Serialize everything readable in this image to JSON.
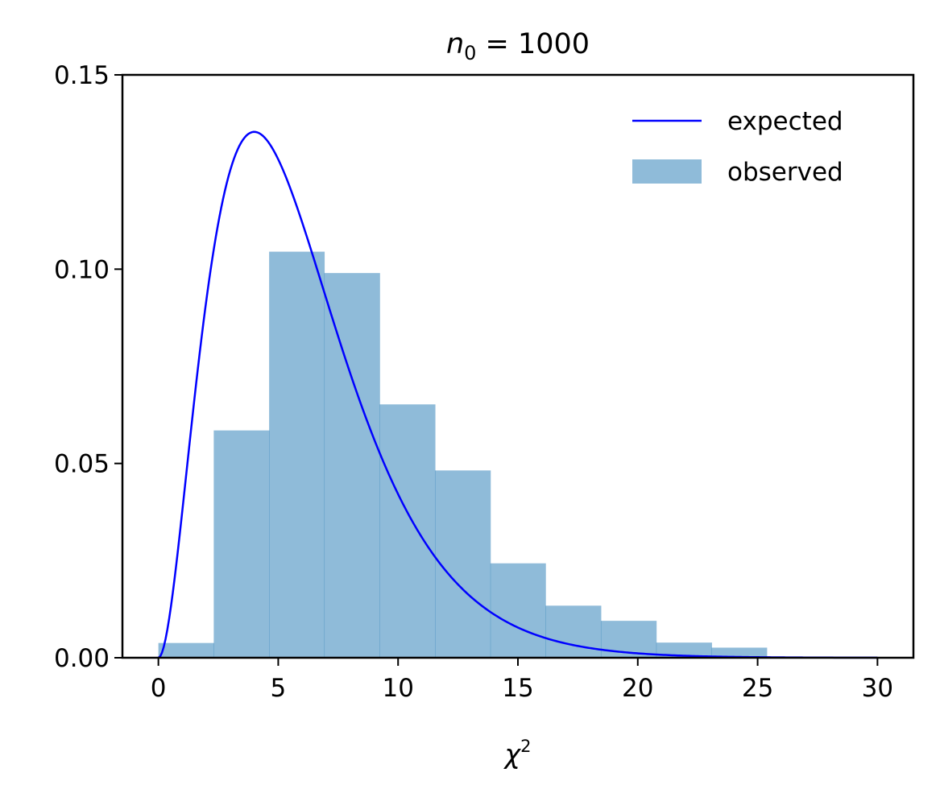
{
  "chart_data": {
    "type": "bar",
    "title": {
      "var": "n",
      "sub": "0",
      "rest": " = 1000"
    },
    "xlabel": {
      "var": "χ",
      "sup": "2"
    },
    "ylabel": "",
    "xlim": [
      -1.5,
      31.5
    ],
    "ylim": [
      0,
      0.15
    ],
    "x_ticks": [
      0,
      5,
      10,
      15,
      20,
      25,
      30
    ],
    "x_tick_labels": [
      "0",
      "5",
      "10",
      "15",
      "20",
      "25",
      "30"
    ],
    "y_ticks": [
      0,
      0.05,
      0.1,
      0.15
    ],
    "y_tick_labels": [
      "0.00",
      "0.05",
      "0.10",
      "0.15"
    ],
    "grid": false,
    "legend_position": "top-right",
    "series": [
      {
        "name": "expected",
        "type": "line",
        "color": "#0000ff",
        "distribution": "chi-square",
        "degrees_of_freedom": 6,
        "x_range": [
          0,
          30
        ]
      },
      {
        "name": "observed",
        "type": "histogram",
        "color": "#1f77b4",
        "opacity": 0.5,
        "bin_edges": [
          0,
          2.31,
          4.62,
          6.92,
          9.23,
          11.54,
          13.85,
          16.15,
          18.46,
          20.77,
          23.08,
          25.38
        ],
        "values": [
          0.0038,
          0.0585,
          0.1045,
          0.099,
          0.0652,
          0.0482,
          0.0243,
          0.0134,
          0.0095,
          0.0039,
          0.0026
        ]
      }
    ]
  }
}
